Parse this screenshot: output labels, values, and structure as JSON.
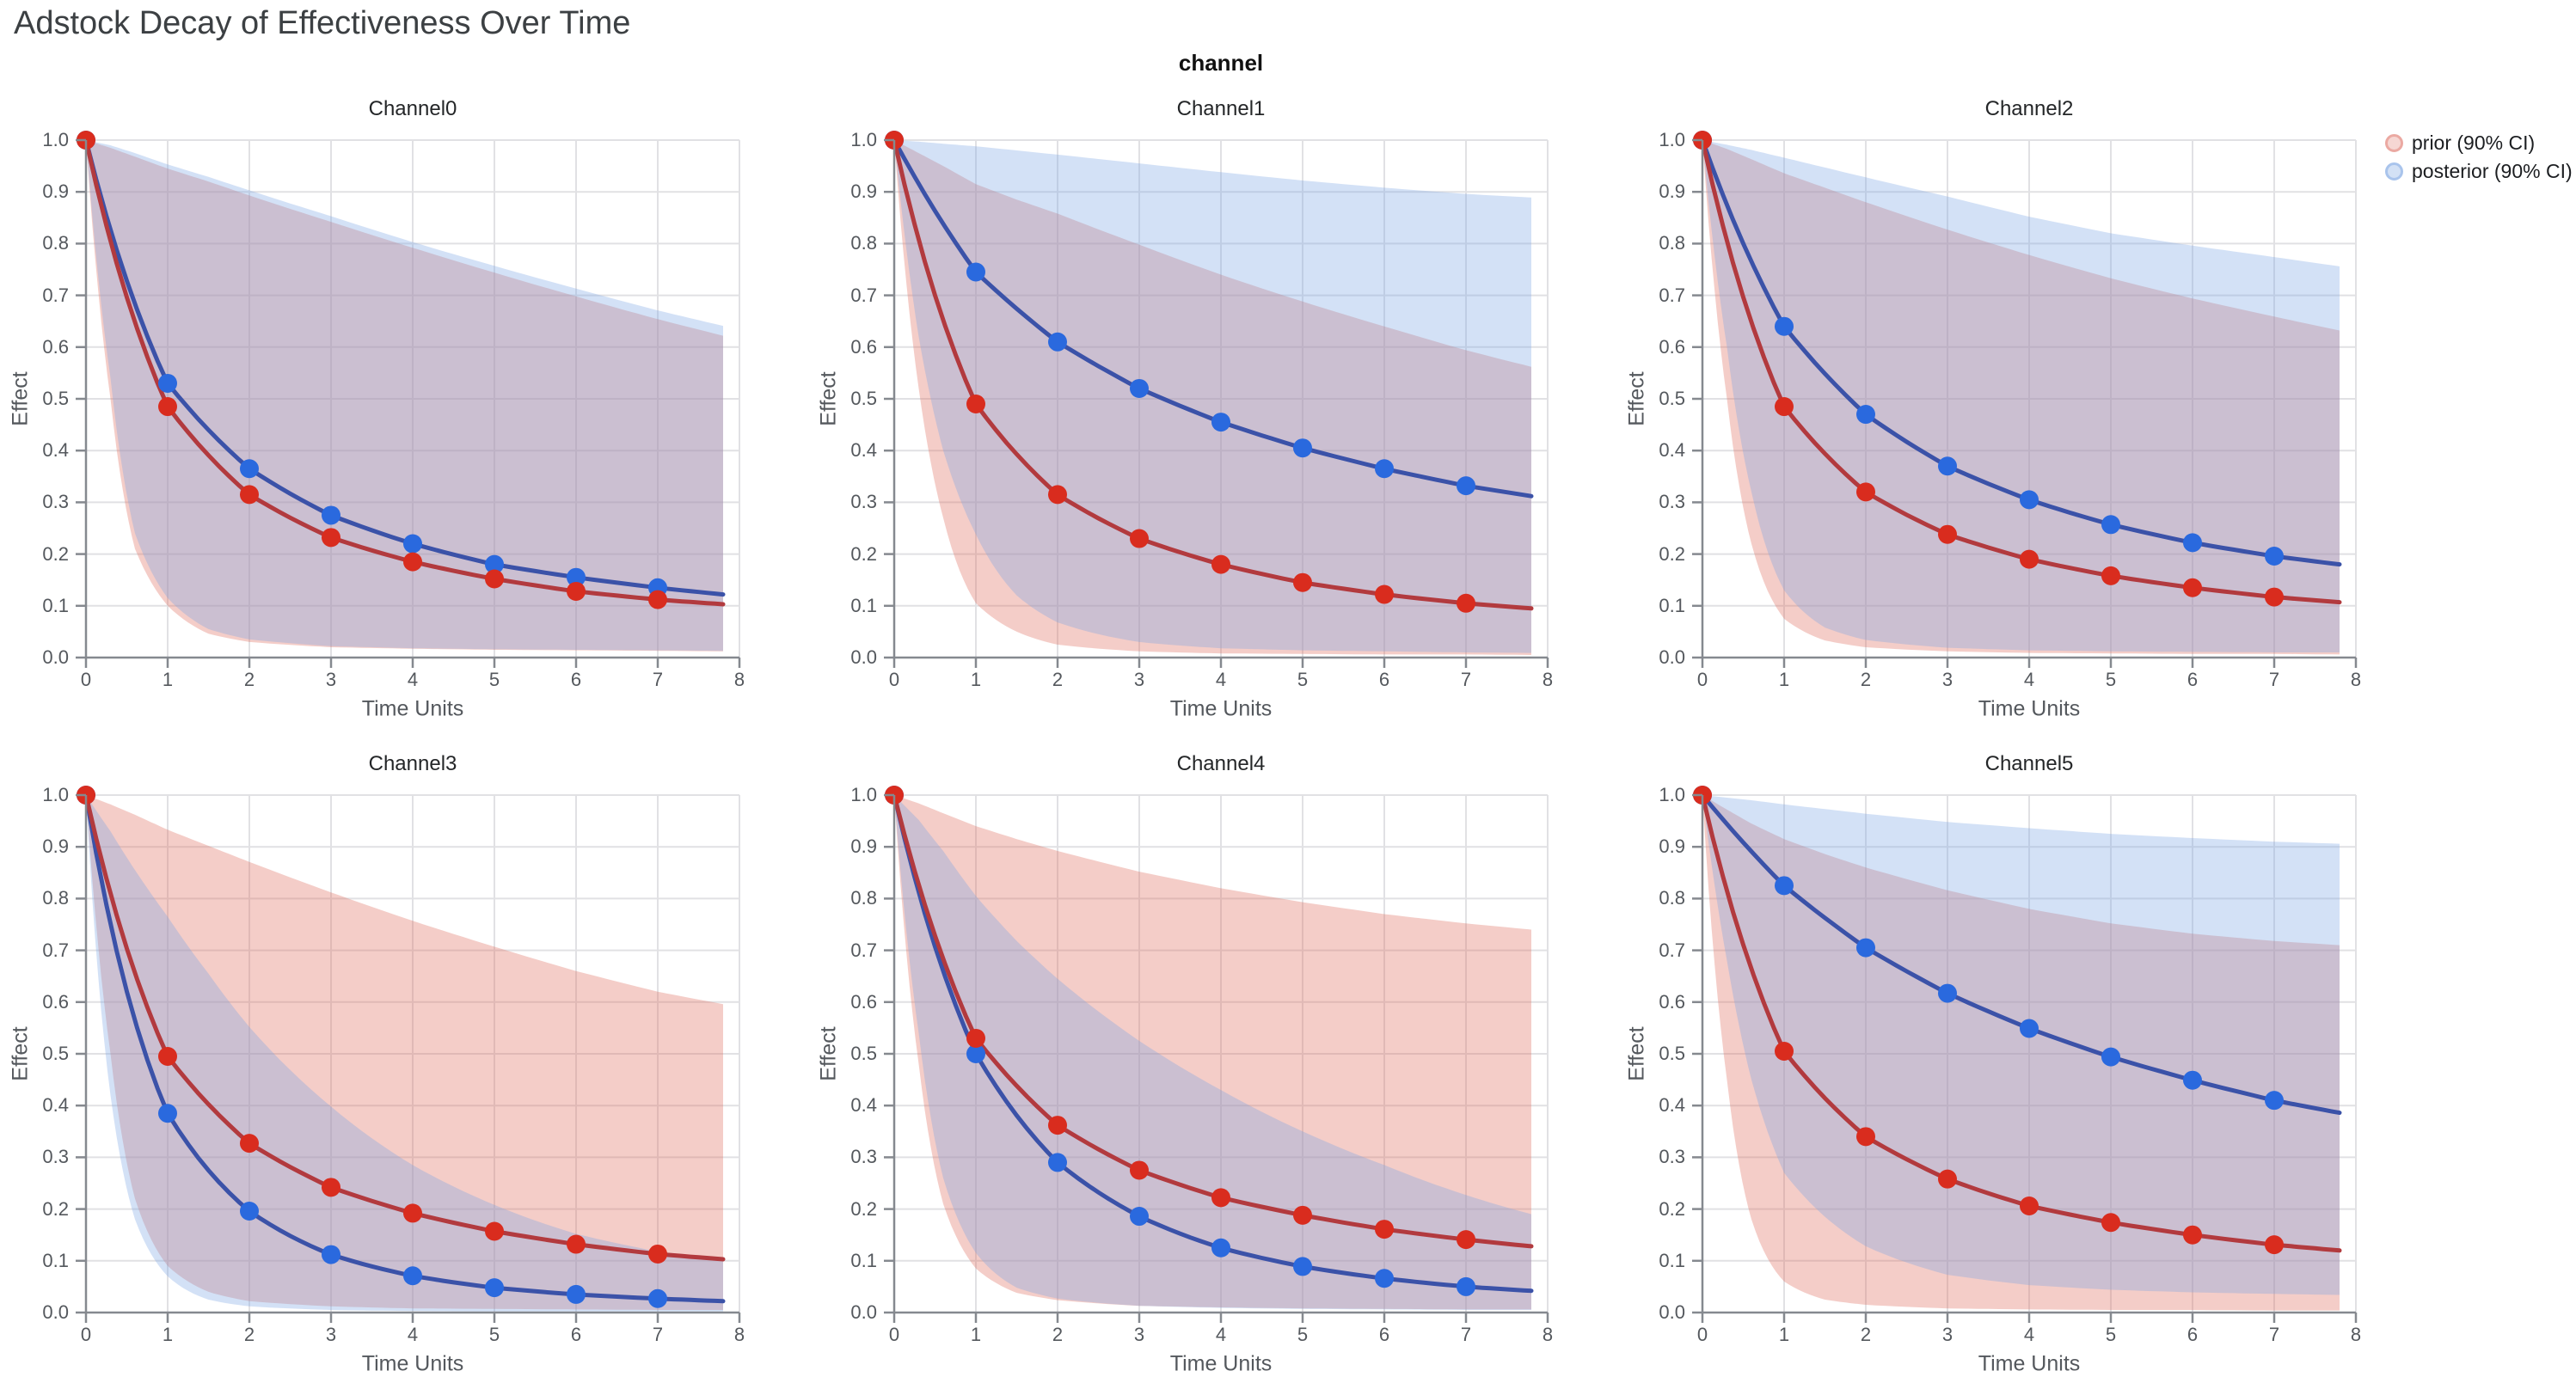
{
  "title": "Adstock Decay of Effectiveness Over Time",
  "facet_title": "channel",
  "legend": {
    "items": [
      {
        "label": "prior (90% CI)",
        "swatch_fill": "#f6d7d3",
        "swatch_ring": "#eba9a2"
      },
      {
        "label": "posterior (90% CI)",
        "swatch_fill": "#d3e1f5",
        "swatch_ring": "#a9c4ec"
      }
    ]
  },
  "axes": {
    "xlabel": "Time Units",
    "ylabel": "Effect",
    "x_ticks": [
      "0",
      "1",
      "2",
      "3",
      "4",
      "5",
      "6",
      "7",
      "8"
    ],
    "y_ticks": [
      "0.0",
      "0.1",
      "0.2",
      "0.3",
      "0.4",
      "0.5",
      "0.6",
      "0.7",
      "0.8",
      "0.9",
      "1.0"
    ],
    "xlim": [
      0,
      8
    ],
    "ylim": [
      0.0,
      1.0
    ],
    "grid": true
  },
  "colors": {
    "prior_line": "#b23a3e",
    "prior_marker": "#d92c1e",
    "prior_band": "#dd6658",
    "posterior_line": "#3b52a8",
    "posterior_marker": "#2a69de",
    "posterior_band": "#7aa3e3",
    "band_opacity": 0.33,
    "grid": "#e1e1e4",
    "axis": "#85898f",
    "tick_text": "#54585d",
    "title_text": "#3c4043"
  },
  "chart_data": {
    "type": "line",
    "title": "Adstock Decay of Effectiveness Over Time",
    "xlabel": "Time Units",
    "ylabel": "Effect",
    "xlim": [
      0,
      8
    ],
    "ylim": [
      0.0,
      1.0
    ],
    "legend_position": "top-right",
    "series_names": [
      "prior (90% CI)",
      "posterior (90% CI)"
    ],
    "mean_x": [
      0,
      1,
      2,
      3,
      4,
      5,
      6,
      7,
      7.8
    ],
    "marker_x": [
      0,
      1,
      2,
      3,
      4,
      5,
      6,
      7
    ],
    "band_x": [
      0,
      0.3,
      0.6,
      1,
      1.5,
      2,
      3,
      4,
      5,
      6,
      7,
      7.8
    ],
    "facets": [
      {
        "title": "Channel0",
        "prior": {
          "mean": [
            1.0,
            0.485,
            0.315,
            0.232,
            0.185,
            0.152,
            0.128,
            0.112,
            0.103
          ],
          "upper": [
            1.0,
            0.985,
            0.968,
            0.945,
            0.92,
            0.893,
            0.842,
            0.792,
            0.744,
            0.698,
            0.654,
            0.622
          ],
          "lower": [
            1.0,
            0.5,
            0.21,
            0.1,
            0.046,
            0.03,
            0.02,
            0.017,
            0.015,
            0.014,
            0.013,
            0.012
          ]
        },
        "posterior": {
          "mean": [
            1.0,
            0.53,
            0.365,
            0.275,
            0.22,
            0.18,
            0.155,
            0.135,
            0.122
          ],
          "upper": [
            1.0,
            0.99,
            0.975,
            0.953,
            0.929,
            0.903,
            0.853,
            0.803,
            0.757,
            0.713,
            0.671,
            0.641
          ],
          "lower": [
            1.0,
            0.54,
            0.24,
            0.115,
            0.055,
            0.035,
            0.022,
            0.018,
            0.016,
            0.015,
            0.014,
            0.013
          ]
        }
      },
      {
        "title": "Channel1",
        "prior": {
          "mean": [
            1.0,
            0.49,
            0.315,
            0.23,
            0.18,
            0.145,
            0.122,
            0.105,
            0.095
          ],
          "upper": [
            1.0,
            0.975,
            0.95,
            0.915,
            0.885,
            0.858,
            0.798,
            0.74,
            0.688,
            0.64,
            0.594,
            0.562
          ],
          "lower": [
            1.0,
            0.52,
            0.27,
            0.105,
            0.05,
            0.025,
            0.012,
            0.008,
            0.007,
            0.006,
            0.006,
            0.005
          ]
        },
        "posterior": {
          "mean": [
            1.0,
            0.745,
            0.61,
            0.52,
            0.455,
            0.405,
            0.365,
            0.332,
            0.312
          ],
          "upper": [
            1.0,
            0.997,
            0.993,
            0.988,
            0.98,
            0.972,
            0.955,
            0.938,
            0.922,
            0.908,
            0.896,
            0.889
          ],
          "lower": [
            1.0,
            0.62,
            0.4,
            0.238,
            0.12,
            0.068,
            0.03,
            0.018,
            0.014,
            0.012,
            0.01,
            0.009
          ]
        }
      },
      {
        "title": "Channel2",
        "prior": {
          "mean": [
            1.0,
            0.485,
            0.32,
            0.238,
            0.19,
            0.158,
            0.135,
            0.117,
            0.107
          ],
          "upper": [
            1.0,
            0.983,
            0.963,
            0.936,
            0.908,
            0.88,
            0.827,
            0.778,
            0.733,
            0.694,
            0.659,
            0.632
          ],
          "lower": [
            1.0,
            0.5,
            0.22,
            0.075,
            0.033,
            0.02,
            0.012,
            0.009,
            0.008,
            0.007,
            0.007,
            0.006
          ]
        },
        "posterior": {
          "mean": [
            1.0,
            0.64,
            0.47,
            0.37,
            0.305,
            0.257,
            0.222,
            0.196,
            0.18
          ],
          "upper": [
            1.0,
            0.991,
            0.981,
            0.966,
            0.947,
            0.928,
            0.891,
            0.852,
            0.82,
            0.796,
            0.774,
            0.756
          ],
          "lower": [
            1.0,
            0.6,
            0.32,
            0.13,
            0.058,
            0.034,
            0.019,
            0.014,
            0.012,
            0.011,
            0.01,
            0.01
          ]
        }
      },
      {
        "title": "Channel3",
        "prior": {
          "mean": [
            1.0,
            0.495,
            0.327,
            0.242,
            0.192,
            0.157,
            0.132,
            0.113,
            0.103
          ],
          "upper": [
            1.0,
            0.982,
            0.962,
            0.933,
            0.902,
            0.871,
            0.812,
            0.757,
            0.707,
            0.66,
            0.62,
            0.596
          ],
          "lower": [
            1.0,
            0.5,
            0.22,
            0.09,
            0.04,
            0.022,
            0.012,
            0.008,
            0.007,
            0.006,
            0.005,
            0.005
          ]
        },
        "posterior": {
          "mean": [
            1.0,
            0.385,
            0.196,
            0.112,
            0.071,
            0.048,
            0.035,
            0.027,
            0.022
          ],
          "upper": [
            1.0,
            0.93,
            0.855,
            0.765,
            0.655,
            0.552,
            0.398,
            0.285,
            0.208,
            0.152,
            0.118,
            0.104
          ],
          "lower": [
            1.0,
            0.42,
            0.18,
            0.07,
            0.025,
            0.012,
            0.005,
            0.003,
            0.002,
            0.002,
            0.002,
            0.002
          ]
        }
      },
      {
        "title": "Channel4",
        "prior": {
          "mean": [
            1.0,
            0.53,
            0.362,
            0.275,
            0.222,
            0.188,
            0.161,
            0.141,
            0.128
          ],
          "upper": [
            1.0,
            0.984,
            0.965,
            0.94,
            0.915,
            0.892,
            0.852,
            0.82,
            0.793,
            0.77,
            0.752,
            0.74
          ],
          "lower": [
            1.0,
            0.48,
            0.21,
            0.085,
            0.038,
            0.024,
            0.013,
            0.01,
            0.008,
            0.007,
            0.006,
            0.006
          ]
        },
        "posterior": {
          "mean": [
            1.0,
            0.5,
            0.29,
            0.186,
            0.125,
            0.089,
            0.066,
            0.05,
            0.042
          ],
          "upper": [
            1.0,
            0.952,
            0.892,
            0.805,
            0.718,
            0.645,
            0.525,
            0.43,
            0.35,
            0.285,
            0.227,
            0.19
          ],
          "lower": [
            1.0,
            0.54,
            0.26,
            0.115,
            0.048,
            0.027,
            0.013,
            0.009,
            0.007,
            0.006,
            0.005,
            0.005
          ]
        }
      },
      {
        "title": "Channel5",
        "prior": {
          "mean": [
            1.0,
            0.505,
            0.34,
            0.258,
            0.206,
            0.174,
            0.15,
            0.131,
            0.12
          ],
          "upper": [
            1.0,
            0.972,
            0.945,
            0.915,
            0.886,
            0.86,
            0.816,
            0.78,
            0.752,
            0.732,
            0.718,
            0.71
          ],
          "lower": [
            1.0,
            0.45,
            0.18,
            0.06,
            0.025,
            0.015,
            0.008,
            0.006,
            0.005,
            0.005,
            0.004,
            0.004
          ]
        },
        "posterior": {
          "mean": [
            1.0,
            0.825,
            0.705,
            0.617,
            0.549,
            0.494,
            0.449,
            0.41,
            0.386
          ],
          "upper": [
            1.0,
            0.995,
            0.99,
            0.982,
            0.973,
            0.964,
            0.948,
            0.936,
            0.925,
            0.917,
            0.91,
            0.906
          ],
          "lower": [
            1.0,
            0.68,
            0.45,
            0.27,
            0.185,
            0.128,
            0.073,
            0.053,
            0.044,
            0.039,
            0.036,
            0.034
          ]
        }
      }
    ]
  }
}
